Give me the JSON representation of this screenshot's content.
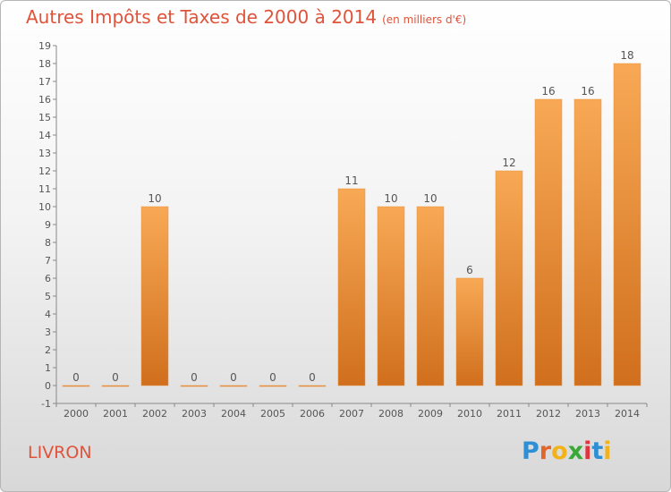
{
  "title": "Autres Impôts et Taxes de 2000 à 2014",
  "subtitle": "(en milliers d'€)",
  "place": "LIVRON",
  "logo": {
    "letters": [
      "P",
      "r",
      "o",
      "x",
      "i",
      "t",
      "i"
    ],
    "colors": [
      "#2e8fd4",
      "#e2662c",
      "#f2b21a",
      "#3aa836",
      "#e2343b",
      "#2e8fd4",
      "#f2b21a"
    ]
  },
  "colors": {
    "bar_top": "#f8a955",
    "bar_bottom": "#d06f1d",
    "title": "#e0533a"
  },
  "chart_data": {
    "type": "bar",
    "categories": [
      "2000",
      "2001",
      "2002",
      "2003",
      "2004",
      "2005",
      "2006",
      "2007",
      "2008",
      "2009",
      "2010",
      "2011",
      "2012",
      "2013",
      "2014"
    ],
    "values": [
      0,
      0,
      10,
      0,
      0,
      0,
      0,
      11,
      10,
      10,
      6,
      12,
      16,
      16,
      18
    ],
    "ylim": [
      -1,
      19
    ],
    "yticks": [
      -1,
      0,
      1,
      2,
      3,
      4,
      5,
      6,
      7,
      8,
      9,
      10,
      11,
      12,
      13,
      14,
      15,
      16,
      17,
      18,
      19
    ],
    "grid": false
  }
}
